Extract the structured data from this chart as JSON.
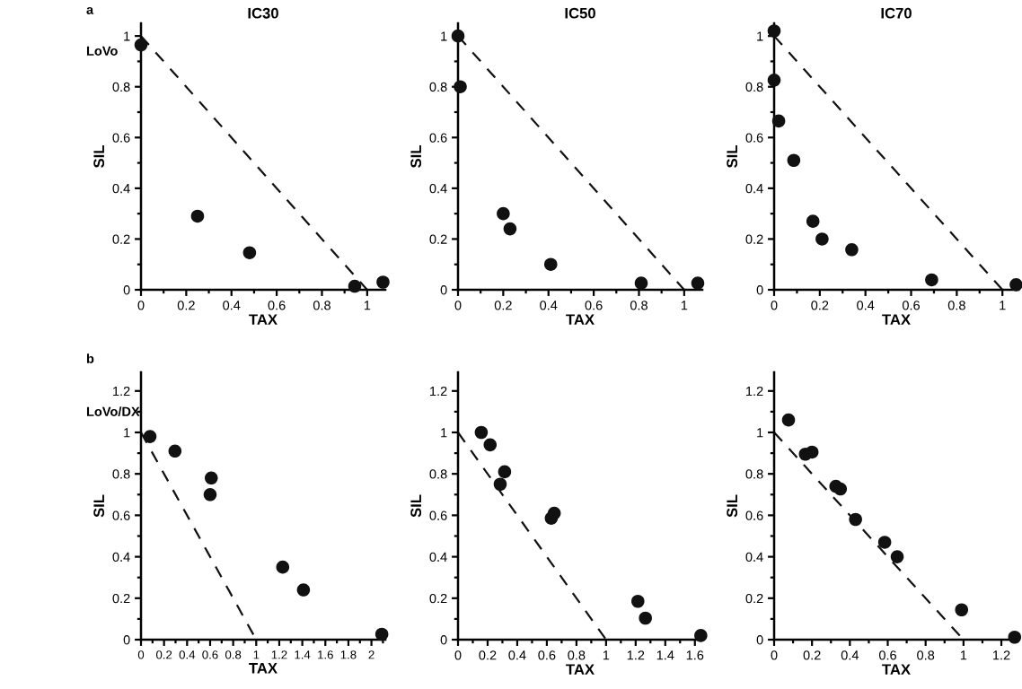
{
  "chart_data": [
    {
      "type": "scatter",
      "title": "IC30",
      "xlabel": "TAX",
      "ylabel": "SIL",
      "annotations": [
        "a",
        "LoVo"
      ],
      "xlim": [
        0,
        1.08
      ],
      "ylim": [
        0,
        1.05
      ],
      "xticks": [
        0,
        {
          "value": 0.1,
          "label": null
        },
        0.2,
        {
          "value": 0.3,
          "label": null
        },
        0.4,
        {
          "value": 0.5,
          "label": null
        },
        0.6,
        {
          "value": 0.7,
          "label": null
        },
        0.8,
        {
          "value": 0.9,
          "label": null
        },
        1
      ],
      "yticks": [
        0,
        {
          "value": 0.1,
          "label": null
        },
        0.2,
        {
          "value": 0.3,
          "label": null
        },
        0.4,
        {
          "value": 0.5,
          "label": null
        },
        0.6,
        {
          "value": 0.7,
          "label": null
        },
        0.8,
        {
          "value": 0.9,
          "label": null
        },
        1
      ],
      "series": [
        {
          "color": "#111111",
          "marker": "circle",
          "x": [
            0,
            0.25,
            0.48,
            0.945,
            1.07
          ],
          "values": [
            0.965,
            0.29,
            0.146,
            0.014,
            0.03
          ]
        },
        {
          "type": "line",
          "color": "#111111",
          "line_style": "dashed",
          "x": [
            0,
            1
          ],
          "values": [
            1,
            0
          ]
        }
      ]
    },
    {
      "type": "scatter",
      "title": "IC50",
      "xlabel": "TAX",
      "ylabel": "SIL",
      "xlim": [
        0,
        1.08
      ],
      "ylim": [
        0,
        1.05
      ],
      "xticks": [
        0,
        {
          "value": 0.1,
          "label": null
        },
        0.2,
        {
          "value": 0.3,
          "label": null
        },
        0.4,
        {
          "value": 0.5,
          "label": null
        },
        0.6,
        {
          "value": 0.7,
          "label": null
        },
        0.8,
        {
          "value": 0.9,
          "label": null
        },
        1
      ],
      "yticks": [
        0,
        {
          "value": 0.1,
          "label": null
        },
        0.2,
        {
          "value": 0.3,
          "label": null
        },
        0.4,
        {
          "value": 0.5,
          "label": null
        },
        0.6,
        {
          "value": 0.7,
          "label": null
        },
        0.8,
        {
          "value": 0.9,
          "label": null
        },
        1
      ],
      "series": [
        {
          "color": "#111111",
          "marker": "circle",
          "x": [
            0,
            0.01,
            0.2,
            0.23,
            0.41,
            0.81,
            1.06
          ],
          "values": [
            1.0,
            0.8,
            0.3,
            0.24,
            0.1,
            0.026,
            0.026
          ]
        },
        {
          "type": "line",
          "color": "#111111",
          "line_style": "dashed",
          "x": [
            0,
            1
          ],
          "values": [
            1,
            0
          ]
        }
      ]
    },
    {
      "type": "scatter",
      "title": "IC70",
      "xlabel": "TAX",
      "ylabel": "SIL",
      "xlim": [
        0,
        1.07
      ],
      "ylim": [
        0,
        1.05
      ],
      "xticks": [
        0,
        {
          "value": 0.1,
          "label": null
        },
        0.2,
        {
          "value": 0.3,
          "label": null
        },
        0.4,
        {
          "value": 0.5,
          "label": null
        },
        0.6,
        {
          "value": 0.7,
          "label": null
        },
        0.8,
        {
          "value": 0.9,
          "label": null
        },
        1
      ],
      "yticks": [
        0,
        {
          "value": 0.1,
          "label": null
        },
        0.2,
        {
          "value": 0.3,
          "label": null
        },
        0.4,
        {
          "value": 0.5,
          "label": null
        },
        0.6,
        {
          "value": 0.7,
          "label": null
        },
        0.8,
        {
          "value": 0.9,
          "label": null
        },
        1
      ],
      "series": [
        {
          "color": "#111111",
          "marker": "circle",
          "x": [
            0,
            0,
            0.02,
            0.086,
            0.17,
            0.21,
            0.34,
            0.69,
            1.06
          ],
          "values": [
            1.02,
            0.826,
            0.665,
            0.51,
            0.27,
            0.2,
            0.158,
            0.039,
            0.02
          ]
        },
        {
          "type": "line",
          "color": "#111111",
          "line_style": "dashed",
          "x": [
            0,
            1
          ],
          "values": [
            1,
            0
          ]
        }
      ]
    },
    {
      "type": "scatter",
      "xlabel": "TAX",
      "ylabel": "SIL",
      "annotations": [
        "b",
        "LoVo/DX"
      ],
      "xlim": [
        0,
        2.12
      ],
      "ylim": [
        0,
        1.29
      ],
      "xticks": [
        0,
        {
          "value": 0.1,
          "label": null
        },
        0.2,
        {
          "value": 0.3,
          "label": null
        },
        0.4,
        {
          "value": 0.5,
          "label": null
        },
        0.6,
        {
          "value": 0.7,
          "label": null
        },
        0.8,
        {
          "value": 0.9,
          "label": null
        },
        1,
        {
          "value": 1.1,
          "label": null
        },
        1.2,
        {
          "value": 1.3,
          "label": null
        },
        1.4,
        {
          "value": 1.5,
          "label": null
        },
        1.6,
        {
          "value": 1.7,
          "label": null
        },
        1.8,
        {
          "value": 1.9,
          "label": null
        },
        2,
        {
          "value": 2.1,
          "label": null
        }
      ],
      "yticks": [
        0,
        {
          "value": 0.1,
          "label": null
        },
        0.2,
        {
          "value": 0.3,
          "label": null
        },
        0.4,
        {
          "value": 0.5,
          "label": null
        },
        0.6,
        {
          "value": 0.7,
          "label": null
        },
        0.8,
        {
          "value": 0.9,
          "label": null
        },
        1,
        {
          "value": 1.1,
          "label": null
        },
        1.2
      ],
      "series": [
        {
          "color": "#111111",
          "marker": "circle",
          "x": [
            0.078,
            0.295,
            0.61,
            0.6,
            1.23,
            1.41,
            2.09
          ],
          "values": [
            0.98,
            0.91,
            0.78,
            0.7,
            0.35,
            0.24,
            0.026
          ]
        },
        {
          "type": "line",
          "color": "#111111",
          "line_style": "dashed",
          "x": [
            0,
            1
          ],
          "values": [
            1,
            0
          ]
        }
      ]
    },
    {
      "type": "scatter",
      "xlabel": "TAX",
      "ylabel": "SIL",
      "xlim": [
        0,
        1.65
      ],
      "ylim": [
        0,
        1.29
      ],
      "xticks": [
        0,
        {
          "value": 0.1,
          "label": null
        },
        0.2,
        {
          "value": 0.3,
          "label": null
        },
        0.4,
        {
          "value": 0.5,
          "label": null
        },
        0.6,
        {
          "value": 0.7,
          "label": null
        },
        0.8,
        {
          "value": 0.9,
          "label": null
        },
        1,
        {
          "value": 1.1,
          "label": null
        },
        1.2,
        {
          "value": 1.3,
          "label": null
        },
        1.4,
        {
          "value": 1.5,
          "label": null
        },
        1.6
      ],
      "yticks": [
        0,
        {
          "value": 0.1,
          "label": null
        },
        0.2,
        {
          "value": 0.3,
          "label": null
        },
        0.4,
        {
          "value": 0.5,
          "label": null
        },
        0.6,
        {
          "value": 0.7,
          "label": null
        },
        0.8,
        {
          "value": 0.9,
          "label": null
        },
        1,
        {
          "value": 1.1,
          "label": null
        },
        1.2
      ],
      "series": [
        {
          "color": "#111111",
          "marker": "circle",
          "x": [
            0.157,
            0.217,
            0.315,
            0.285,
            0.63,
            0.65,
            1.215,
            1.266,
            1.64
          ],
          "values": [
            1.0,
            0.94,
            0.81,
            0.75,
            0.586,
            0.61,
            0.185,
            0.104,
            0.02
          ]
        },
        {
          "type": "line",
          "color": "#111111",
          "line_style": "dashed",
          "x": [
            0,
            1
          ],
          "values": [
            1,
            0
          ]
        }
      ]
    },
    {
      "type": "scatter",
      "xlabel": "TAX",
      "ylabel": "SIL",
      "xlim": [
        0,
        1.29
      ],
      "ylim": [
        0,
        1.29
      ],
      "xticks": [
        0,
        {
          "value": 0.1,
          "label": null
        },
        0.2,
        {
          "value": 0.3,
          "label": null
        },
        0.4,
        {
          "value": 0.5,
          "label": null
        },
        0.6,
        {
          "value": 0.7,
          "label": null
        },
        0.8,
        {
          "value": 0.9,
          "label": null
        },
        1,
        {
          "value": 1.1,
          "label": null
        },
        1.2
      ],
      "yticks": [
        0,
        {
          "value": 0.1,
          "label": null
        },
        0.2,
        {
          "value": 0.3,
          "label": null
        },
        0.4,
        {
          "value": 0.5,
          "label": null
        },
        0.6,
        {
          "value": 0.7,
          "label": null
        },
        0.8,
        {
          "value": 0.9,
          "label": null
        },
        1,
        {
          "value": 1.1,
          "label": null
        },
        1.2
      ],
      "series": [
        {
          "color": "#111111",
          "marker": "circle",
          "x": [
            0.076,
            0.165,
            0.2,
            0.326,
            0.35,
            0.43,
            0.584,
            0.65,
            0.99,
            1.27
          ],
          "values": [
            1.06,
            0.895,
            0.905,
            0.74,
            0.727,
            0.58,
            0.47,
            0.4,
            0.144,
            0.012
          ]
        },
        {
          "type": "line",
          "color": "#111111",
          "line_style": "dashed",
          "x": [
            0,
            1
          ],
          "values": [
            1,
            0
          ]
        }
      ]
    }
  ]
}
